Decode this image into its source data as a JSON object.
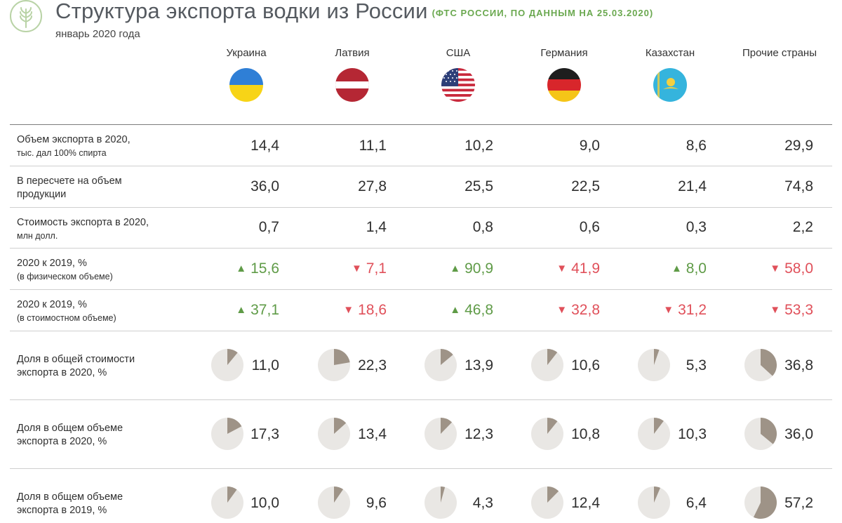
{
  "header": {
    "title": "Структура экспорта водки из России",
    "source": "(ФТС РОССИИ, ПО ДАННЫМ НА 25.03.2020)",
    "subtitle": "январь 2020 года"
  },
  "countries": [
    "Украина",
    "Латвия",
    "США",
    "Германия",
    "Казахстан",
    "Прочие страны"
  ],
  "flags": [
    "ukraine-flag-icon",
    "latvia-flag-icon",
    "usa-flag-icon",
    "germany-flag-icon",
    "kazakhstan-flag-icon"
  ],
  "rows": {
    "volume": {
      "label1": "Объем экспорта в 2020,",
      "label2": "тыс. дал 100% спирта",
      "values": [
        "14,4",
        "11,1",
        "10,2",
        "9,0",
        "8,6",
        "29,9"
      ]
    },
    "product": {
      "label1": "В пересчете на объем",
      "label2": "продукции",
      "values": [
        "36,0",
        "27,8",
        "25,5",
        "22,5",
        "21,4",
        "74,8"
      ]
    },
    "cost": {
      "label1": "Стоимость экспорта в 2020,",
      "label2": "млн долл.",
      "values": [
        "0,7",
        "1,4",
        "0,8",
        "0,6",
        "0,3",
        "2,2"
      ]
    },
    "chg_phys": {
      "label1": "2020 к 2019, %",
      "label2": "(в физическом объеме)",
      "values": [
        "15,6",
        "7,1",
        "90,9",
        "41,9",
        "8,0",
        "58,0"
      ],
      "dirs": [
        "up",
        "down",
        "up",
        "down",
        "up",
        "down"
      ]
    },
    "chg_cost": {
      "label1": "2020 к 2019, %",
      "label2": "(в стоимостном объеме)",
      "values": [
        "37,1",
        "18,6",
        "46,8",
        "32,8",
        "31,2",
        "53,3"
      ],
      "dirs": [
        "up",
        "down",
        "up",
        "down",
        "down",
        "down"
      ]
    },
    "share_cost": {
      "label1": "Доля в общей стоимости",
      "label2": "экспорта в 2020, %",
      "values": [
        "11,0",
        "22,3",
        "13,9",
        "10,6",
        "5,3",
        "36,8"
      ]
    },
    "share_vol20": {
      "label1": "Доля в общем объеме",
      "label2": "экспорта в 2020, %",
      "values": [
        "17,3",
        "13,4",
        "12,3",
        "10,8",
        "10,3",
        "36,0"
      ]
    },
    "share_vol19": {
      "label1": "Доля в общем объеме",
      "label2": "экспорта в 2019, %",
      "values": [
        "10,0",
        "9,6",
        "4,3",
        "12,4",
        "6,4",
        "57,2"
      ]
    }
  },
  "colors": {
    "up": "#5f9b47",
    "down": "#e0505a",
    "pie_fill": "#9e9387",
    "pie_bg": "#e9e7e4"
  },
  "chart_data": {
    "type": "table",
    "title": "Структура экспорта водки из России",
    "categories": [
      "Украина",
      "Латвия",
      "США",
      "Германия",
      "Казахстан",
      "Прочие страны"
    ],
    "series": [
      {
        "name": "Объем экспорта в 2020, тыс. дал 100% спирта",
        "values": [
          14.4,
          11.1,
          10.2,
          9.0,
          8.6,
          29.9
        ]
      },
      {
        "name": "В пересчете на объем продукции",
        "values": [
          36.0,
          27.8,
          25.5,
          22.5,
          21.4,
          74.8
        ]
      },
      {
        "name": "Стоимость экспорта в 2020, млн долл.",
        "values": [
          0.7,
          1.4,
          0.8,
          0.6,
          0.3,
          2.2
        ]
      },
      {
        "name": "2020 к 2019, % (в физическом объеме)",
        "values": [
          15.6,
          -7.1,
          90.9,
          -41.9,
          8.0,
          -58.0
        ]
      },
      {
        "name": "2020 к 2019, % (в стоимостном объеме)",
        "values": [
          37.1,
          -18.6,
          46.8,
          -32.8,
          -31.2,
          -53.3
        ]
      },
      {
        "name": "Доля в общей стоимости экспорта в 2020, %",
        "type": "pie",
        "values": [
          11.0,
          22.3,
          13.9,
          10.6,
          5.3,
          36.8
        ]
      },
      {
        "name": "Доля в общем объеме экспорта в 2020, %",
        "type": "pie",
        "values": [
          17.3,
          13.4,
          12.3,
          10.8,
          10.3,
          36.0
        ]
      },
      {
        "name": "Доля в общем объеме экспорта в 2019, %",
        "type": "pie",
        "values": [
          10.0,
          9.6,
          4.3,
          12.4,
          6.4,
          57.2
        ]
      }
    ]
  }
}
